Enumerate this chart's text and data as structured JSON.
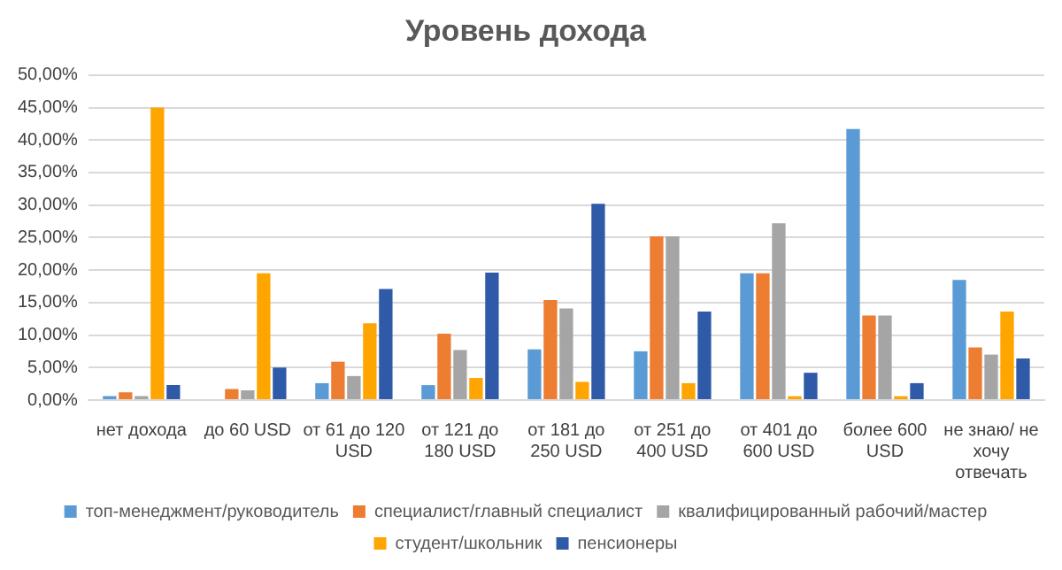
{
  "chart_data": {
    "type": "bar",
    "title": "Уровень дохода",
    "categories": [
      "нет дохода",
      "до 60 USD",
      "от 61 до 120 USD",
      "от 121 до 180 USD",
      "от 181 до 250 USD",
      "от 251 до 400 USD",
      "от 401 до 600 USD",
      "более 600 USD",
      "не знаю/ не хочу отвечать"
    ],
    "series": [
      {
        "name": "топ-менеджмент/руководитель",
        "color": "#5b9bd5",
        "values": [
          0.6,
          0,
          2.6,
          2.3,
          7.8,
          7.5,
          19.5,
          41.7,
          18.5
        ]
      },
      {
        "name": "специалист/главный специалист",
        "color": "#ed7d31",
        "values": [
          1.2,
          1.7,
          5.9,
          10.2,
          15.4,
          25.2,
          19.5,
          13,
          8.1
        ]
      },
      {
        "name": "квалифицированный рабочий/мастер",
        "color": "#a5a5a5",
        "values": [
          0.6,
          1.5,
          3.7,
          7.7,
          14.1,
          25.2,
          27.2,
          13,
          7
        ]
      },
      {
        "name": "студент/школьник",
        "color": "#ffa500",
        "values": [
          45,
          19.5,
          11.8,
          3.4,
          2.8,
          2.6,
          0.6,
          0.6,
          13.6
        ]
      },
      {
        "name": "пенсионеры",
        "color": "#2e5aa8",
        "values": [
          2.3,
          5,
          17.1,
          19.6,
          30.2,
          13.6,
          4.2,
          2.6,
          6.4
        ]
      }
    ],
    "ylim": [
      0,
      50
    ],
    "yticks": [
      {
        "value": 0,
        "label": "0,00%"
      },
      {
        "value": 5,
        "label": "5,00%"
      },
      {
        "value": 10,
        "label": "10,00%"
      },
      {
        "value": 15,
        "label": "15,00%"
      },
      {
        "value": 20,
        "label": "20,00%"
      },
      {
        "value": 25,
        "label": "25,00%"
      },
      {
        "value": 30,
        "label": "30,00%"
      },
      {
        "value": 35,
        "label": "35,00%"
      },
      {
        "value": 40,
        "label": "40,00%"
      },
      {
        "value": 45,
        "label": "45,00%"
      },
      {
        "value": 50,
        "label": "50,00%"
      }
    ],
    "grid": "y",
    "legend": "bottom"
  }
}
